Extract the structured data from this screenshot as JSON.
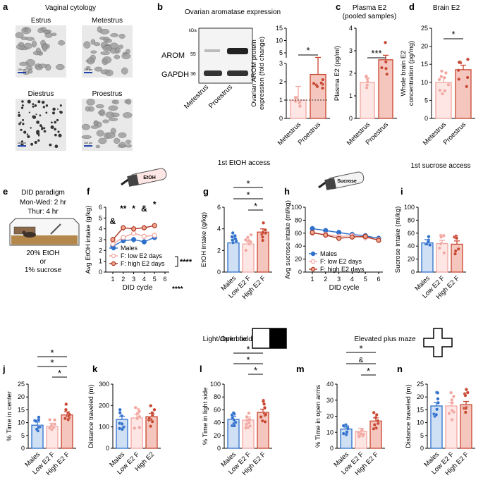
{
  "colors": {
    "blue": "#2e6fcc",
    "lightblue": "#cfe0f5",
    "pink": "#f2a6a0",
    "lightpink": "#fde6e3",
    "red": "#c8452f",
    "lightred": "#f5c6bd",
    "darkred": "#a93622",
    "grey": "#555555"
  },
  "panel_letters": {
    "a": "a",
    "b": "b",
    "c": "c",
    "d": "d",
    "e": "e",
    "f": "f",
    "g": "g",
    "h": "h",
    "i": "i",
    "j": "j",
    "k": "k",
    "l": "l",
    "m": "m",
    "n": "n"
  },
  "panel_a": {
    "title": "Vaginal cytology",
    "labels": [
      "Estrus",
      "Metestrus",
      "Diestrus",
      "Proestrus"
    ],
    "scalebar": "100 µm"
  },
  "panel_b": {
    "title": "Ovarian aromatase expression",
    "kda": "kDa",
    "arom": "AROM",
    "arom_kda": "55",
    "gapdh": "GAPDH",
    "gapdh_kda": "36",
    "lane_labels": [
      "Metestrus",
      "Proestrus"
    ]
  },
  "star1": "*",
  "star3": "***",
  "star4": "****",
  "amp": "&",
  "chart_data": [
    {
      "panel": "b",
      "type": "bar",
      "ylabel": [
        "Ovarian AROM protein",
        "expression (fold change)"
      ],
      "categories": [
        "Metestrus",
        "Proestrus"
      ],
      "values": [
        1.0,
        2.4
      ],
      "ylim": [
        0,
        15
      ],
      "yticks": [
        "0",
        "1",
        "2",
        "3",
        "5",
        "10",
        "15"
      ],
      "sig": "*"
    },
    {
      "panel": "c",
      "type": "bar",
      "title": [
        "Plasma E2",
        "(pooled samples)"
      ],
      "ylabel": "Plasma E2 (pg/ml)",
      "categories": [
        "Metestrus",
        "Proestrus"
      ],
      "values": [
        1.6,
        2.6
      ],
      "ylim": [
        0,
        4
      ],
      "yticks": [
        "0",
        "1",
        "2",
        "3",
        "4"
      ],
      "sig": "***"
    },
    {
      "panel": "d",
      "type": "bar",
      "title": "Brain E2",
      "ylabel": [
        "Whole brain E2",
        "concentration (pg/mg)"
      ],
      "categories": [
        "Metestrus",
        "Proestrus"
      ],
      "values": [
        10,
        13.5
      ],
      "ylim": [
        0,
        25
      ],
      "yticks": [
        "0",
        "5",
        "10",
        "15",
        "20",
        "25"
      ],
      "sig": "*"
    },
    {
      "panel": "f",
      "type": "line",
      "ylabel": "Avg EtOH intake (g/kg)",
      "xlabel": "DID cycle",
      "xlabel_sig": "****",
      "x": [
        "1",
        "2",
        "3",
        "4",
        "5",
        "6"
      ],
      "ylim": [
        0,
        6
      ],
      "yticks": [
        "0",
        "1",
        "2",
        "3",
        "4",
        "5",
        "6"
      ],
      "series": [
        {
          "name": "Males",
          "values": [
            2.4,
            2.9,
            3.0,
            2.8,
            3.2,
            null
          ]
        },
        {
          "name": "F: low E2 days",
          "values": [
            2.6,
            3.2,
            3.6,
            3.3,
            3.4,
            null
          ]
        },
        {
          "name": "F: high E2 days",
          "values": [
            3.0,
            4.1,
            4.0,
            4.1,
            4.3,
            null
          ]
        }
      ],
      "annotations": [
        "&",
        "**",
        "*",
        "&",
        "*"
      ],
      "bracket_sig": "****"
    },
    {
      "panel": "g",
      "type": "bar",
      "title": "1st EtOH access",
      "ylabel": "EtOH intake (g/kg)",
      "categories": [
        "Males",
        "Low E2 F",
        "High E2 F"
      ],
      "values": [
        2.7,
        2.6,
        3.7
      ],
      "ylim": [
        0,
        6
      ],
      "yticks": [
        "0",
        "2",
        "4",
        "6"
      ]
    },
    {
      "panel": "h",
      "type": "line",
      "ylabel": "Avg sucrose intake (ml/kg)",
      "xlabel": "DID cycle",
      "x": [
        "1",
        "2",
        "3",
        "4",
        "5",
        "6"
      ],
      "ylim": [
        0,
        100
      ],
      "yticks": [
        "0",
        "20",
        "40",
        "60",
        "80",
        "100"
      ],
      "series": [
        {
          "name": "Males",
          "values": [
            67,
            64,
            61,
            58,
            56,
            52
          ]
        },
        {
          "name": "F: low E2 days",
          "values": [
            60,
            58,
            55,
            56,
            53,
            50
          ]
        },
        {
          "name": "F: high E2 days",
          "values": [
            61,
            57,
            52,
            54,
            55,
            49
          ]
        }
      ]
    },
    {
      "panel": "i",
      "type": "bar",
      "title": "1st sucrose access",
      "ylabel": "Sucrose intake (ml/kg)",
      "categories": [
        "Males",
        "Low E2 F",
        "High E2 F"
      ],
      "values": [
        45,
        44,
        43
      ],
      "ylim": [
        0,
        100
      ],
      "yticks": [
        "0",
        "20",
        "40",
        "60",
        "80",
        "100"
      ]
    },
    {
      "panel": "j",
      "type": "bar",
      "title": "Open field",
      "ylabel": "% Time in center",
      "categories": [
        "Males",
        "Low E2 F",
        "High E2 F"
      ],
      "values": [
        9,
        8.5,
        13
      ],
      "ylim": [
        0,
        25
      ],
      "yticks": [
        "0",
        "5",
        "10",
        "15",
        "20",
        "25"
      ]
    },
    {
      "panel": "k",
      "type": "bar",
      "ylabel": "Distance traveled (m)",
      "categories": [
        "Males",
        "Low E2 F",
        "High E2"
      ],
      "values": [
        135,
        142,
        148
      ],
      "ylim": [
        0,
        300
      ],
      "yticks": [
        "0",
        "100",
        "200",
        "300"
      ]
    },
    {
      "panel": "l",
      "type": "bar",
      "title": "Light/dark box",
      "ylabel": "% Time in light side",
      "categories": [
        "Males",
        "Low E2 F",
        "High E2 F"
      ],
      "values": [
        45,
        44,
        56
      ],
      "ylim": [
        0,
        100
      ],
      "yticks": [
        "0",
        "20",
        "40",
        "60",
        "80",
        "100"
      ]
    },
    {
      "panel": "m",
      "type": "bar",
      "title": "Elevated plus maze",
      "ylabel": "% Time in open arms",
      "categories": [
        "Males",
        "Low E2 F",
        "High E2 F"
      ],
      "values": [
        12,
        10.5,
        17
      ],
      "ylim": [
        0,
        40
      ],
      "yticks": [
        "0",
        "10",
        "20",
        "30",
        "40"
      ]
    },
    {
      "panel": "n",
      "type": "bar",
      "ylabel": "Distance traveled (m)",
      "categories": [
        "Males",
        "Low E2 F",
        "High E2 F"
      ],
      "values": [
        16.5,
        16.5,
        17
      ],
      "ylim": [
        0,
        25
      ],
      "yticks": [
        "0",
        "5",
        "10",
        "15",
        "20",
        "25"
      ]
    }
  ],
  "panel_e": {
    "title": "DID paradigm",
    "line1": "Mon-Wed: 2 hr",
    "line2": "Thur: 4 hr",
    "line3": "20% EtOH",
    "line4": "or",
    "line5": "1% sucrose"
  },
  "bottle_labels": {
    "etoh": "EtOH",
    "sucrose": "Sucrose"
  }
}
